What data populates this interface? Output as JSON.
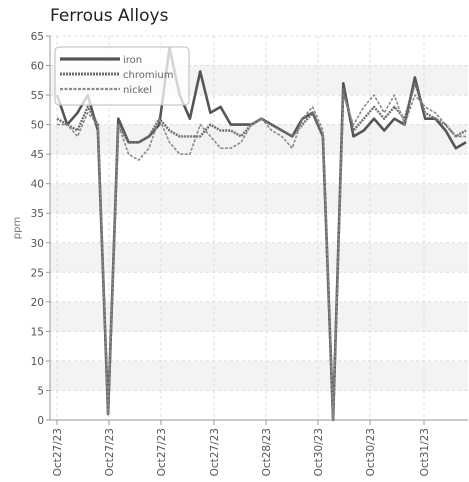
{
  "chart_data": {
    "type": "line",
    "title": "Ferrous Alloys",
    "xlabel": "",
    "ylabel": "ppm",
    "ylim": [
      0,
      65
    ],
    "yticks": [
      0,
      5,
      10,
      15,
      20,
      25,
      30,
      35,
      40,
      45,
      50,
      55,
      60,
      65
    ],
    "x_tick_labels": [
      "Oct27/23",
      "Oct27/23",
      "Oct27/23",
      "Oct27/23",
      "Oct28/23",
      "Oct30/23",
      "Oct30/23",
      "Oct31/23"
    ],
    "grid": true,
    "legend_position": "top-left",
    "colors": {
      "iron": "#555555",
      "chromium": "#6e6e6e",
      "nickel": "#8a8a8a",
      "grid": "#dddddd",
      "band": "#f3f3f3"
    },
    "series": [
      {
        "name": "iron",
        "values": [
          55,
          50,
          52,
          55,
          49,
          1,
          51,
          47,
          47,
          48,
          50,
          63,
          55,
          51,
          59,
          52,
          53,
          50,
          50,
          50,
          51,
          50,
          49,
          48,
          51,
          52,
          48,
          0,
          57,
          48,
          49,
          51,
          49,
          51,
          50,
          58,
          51,
          51,
          49,
          46,
          47
        ]
      },
      {
        "name": "chromium",
        "values": [
          51,
          50,
          49,
          53,
          50,
          1,
          50,
          47,
          47,
          48,
          51,
          49,
          48,
          48,
          48,
          50,
          49,
          49,
          48,
          50,
          51,
          50,
          49,
          48,
          50,
          52,
          48,
          0,
          56,
          49,
          51,
          53,
          51,
          53,
          51,
          57,
          52,
          51,
          50,
          48,
          49
        ]
      },
      {
        "name": "nickel",
        "values": [
          50,
          50,
          48,
          52,
          50,
          1,
          50,
          45,
          44,
          46,
          51,
          47,
          45,
          45,
          50,
          48,
          46,
          46,
          47,
          50,
          51,
          49,
          48,
          46,
          51,
          53,
          49,
          0,
          55,
          50,
          53,
          55,
          52,
          55,
          50,
          55,
          53,
          52,
          50,
          48,
          48
        ]
      }
    ]
  }
}
